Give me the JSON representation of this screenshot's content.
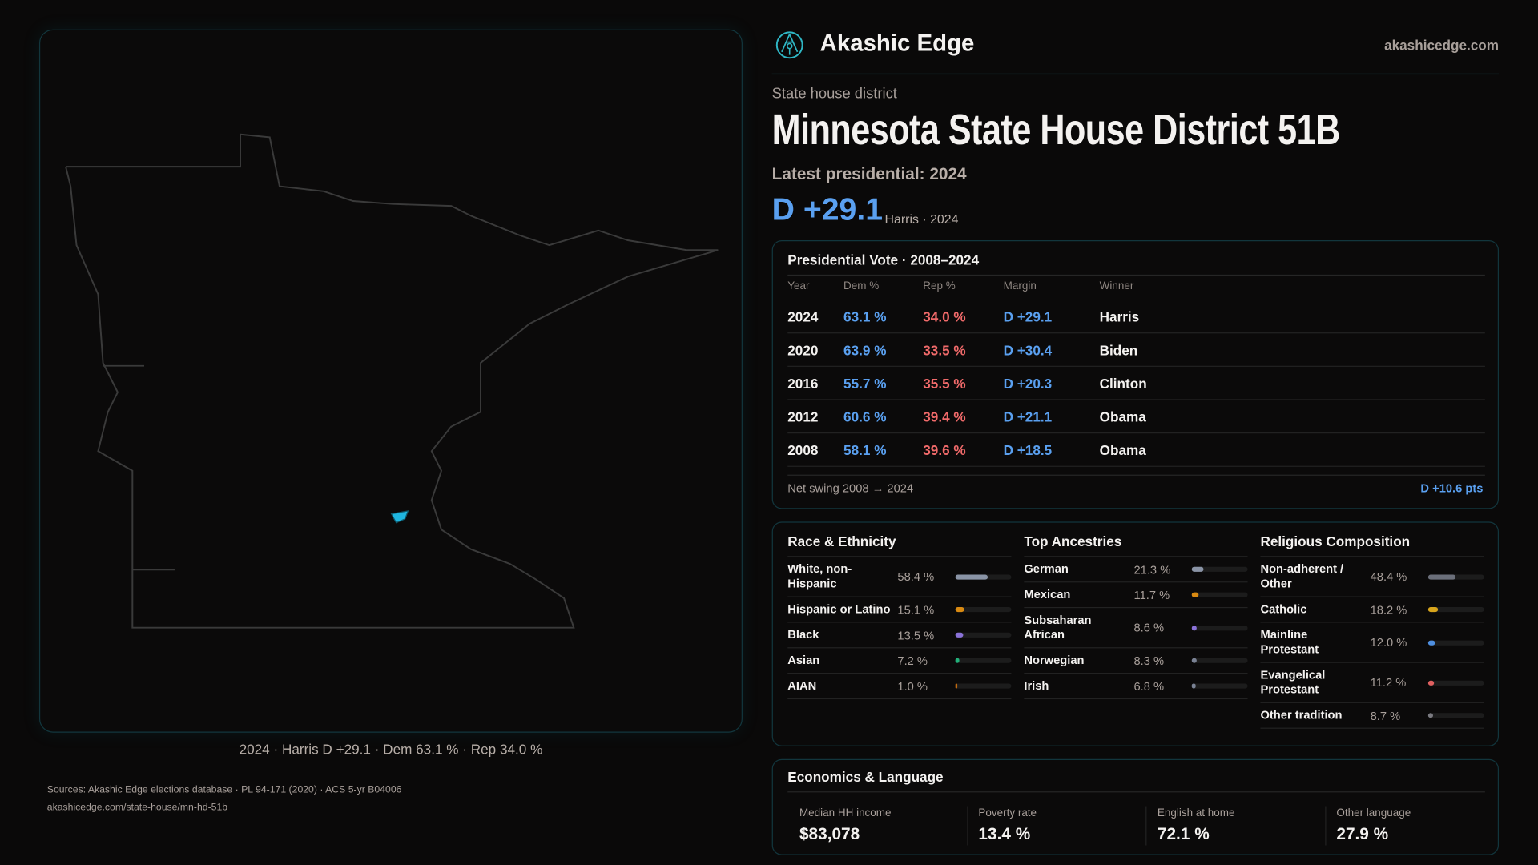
{
  "brand": {
    "name": "Akashic Edge",
    "site": "akashicedge.com",
    "logo_icon": "compass-key-emblem-icon"
  },
  "map": {
    "caption": "2024 · Harris D +29.1 · Dem 63.1 % · Rep 34.0 %",
    "highlight_color": "#1fb6e0"
  },
  "header": {
    "kicker": "State house district",
    "title": "Minnesota State House District 51B",
    "latest": "Latest presidential: 2024",
    "margin": "D +29.1",
    "margin_sub": "Harris · 2024"
  },
  "colors": {
    "dem": "#5aa0f0",
    "rep": "#f06a6a",
    "border": "#12363d"
  },
  "vote": {
    "title": "Presidential Vote · 2008–2024",
    "columns": [
      "Year",
      "Dem %",
      "Rep %",
      "Margin",
      "Winner"
    ],
    "rows": [
      {
        "year": "2024",
        "dem": "63.1 %",
        "rep": "34.0 %",
        "margin": "D +29.1",
        "winner": "Harris"
      },
      {
        "year": "2020",
        "dem": "63.9 %",
        "rep": "33.5 %",
        "margin": "D +30.4",
        "winner": "Biden"
      },
      {
        "year": "2016",
        "dem": "55.7 %",
        "rep": "35.5 %",
        "margin": "D +20.3",
        "winner": "Clinton"
      },
      {
        "year": "2012",
        "dem": "60.6 %",
        "rep": "39.4 %",
        "margin": "D +21.1",
        "winner": "Obama"
      },
      {
        "year": "2008",
        "dem": "58.1 %",
        "rep": "39.6 %",
        "margin": "D +18.5",
        "winner": "Obama"
      }
    ],
    "swing_label": "Net swing 2008 → 2024",
    "swing_value": "D +10.6 pts"
  },
  "demographics": [
    {
      "title": "Race & Ethnicity",
      "items": [
        {
          "label": "White, non-Hispanic",
          "pct": "58.4 %",
          "value": 58.4,
          "color": "#8a94a6"
        },
        {
          "label": "Hispanic or Latino",
          "pct": "15.1 %",
          "value": 15.1,
          "color": "#d98a12"
        },
        {
          "label": "Black",
          "pct": "13.5 %",
          "value": 13.5,
          "color": "#8a72d8"
        },
        {
          "label": "Asian",
          "pct": "7.2 %",
          "value": 7.2,
          "color": "#22b07a"
        },
        {
          "label": "AIAN",
          "pct": "1.0 %",
          "value": 1.0,
          "color": "#c06a10"
        }
      ]
    },
    {
      "title": "Top Ancestries",
      "items": [
        {
          "label": "German",
          "pct": "21.3 %",
          "value": 21.3,
          "color": "#8a94a6"
        },
        {
          "label": "Mexican",
          "pct": "11.7 %",
          "value": 11.7,
          "color": "#d98a12"
        },
        {
          "label": "Subsaharan African",
          "pct": "8.6 %",
          "value": 8.6,
          "color": "#8a72d8"
        },
        {
          "label": "Norwegian",
          "pct": "8.3 %",
          "value": 8.3,
          "color": "#7a8294"
        },
        {
          "label": "Irish",
          "pct": "6.8 %",
          "value": 6.8,
          "color": "#7a8294"
        }
      ]
    },
    {
      "title": "Religious Composition",
      "items": [
        {
          "label": "Non-adherent / Other",
          "pct": "48.4 %",
          "value": 48.4,
          "color": "#6b6f7a"
        },
        {
          "label": "Catholic",
          "pct": "18.2 %",
          "value": 18.2,
          "color": "#d8a51c"
        },
        {
          "label": "Mainline Protestant",
          "pct": "12.0 %",
          "value": 12.0,
          "color": "#4f8fe0"
        },
        {
          "label": "Evangelical Protestant",
          "pct": "11.2 %",
          "value": 11.2,
          "color": "#e06060"
        },
        {
          "label": "Other tradition",
          "pct": "8.7 %",
          "value": 8.7,
          "color": "#7a7a80"
        }
      ]
    }
  ],
  "economics": {
    "title": "Economics & Language",
    "items": [
      {
        "label": "Median HH income",
        "value": "$83,078"
      },
      {
        "label": "Poverty rate",
        "value": "13.4 %"
      },
      {
        "label": "English at home",
        "value": "72.1 %"
      },
      {
        "label": "Other language",
        "value": "27.9 %"
      }
    ]
  },
  "footer": {
    "sources": "Sources: Akashic Edge elections database · PL 94-171 (2020) · ACS 5-yr B04006",
    "url": "akashicedge.com/state-house/mn-hd-51b"
  }
}
